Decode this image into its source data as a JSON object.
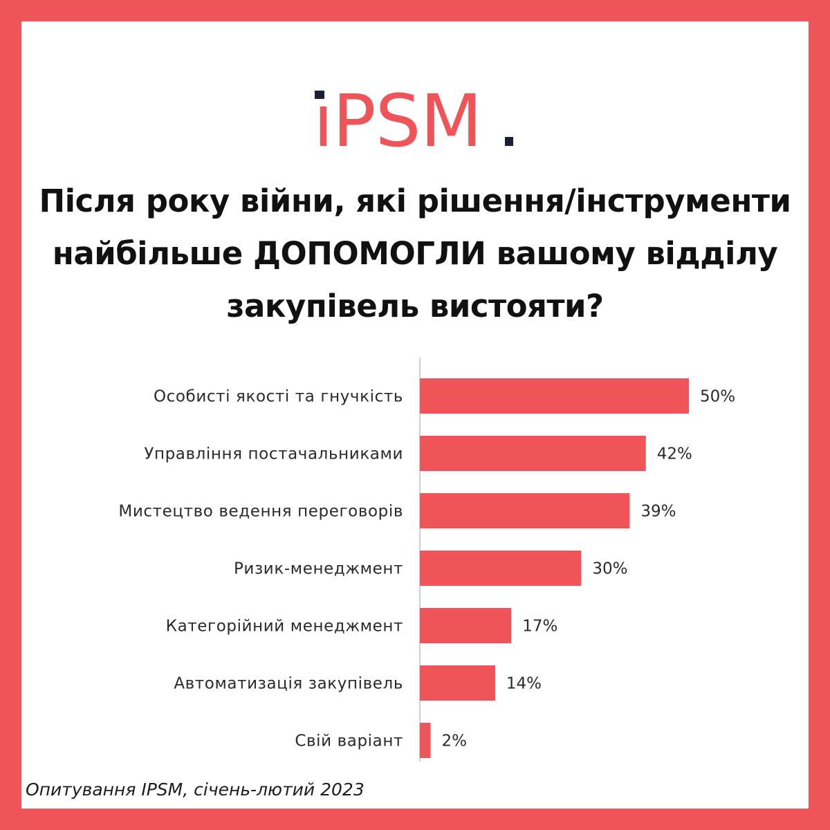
{
  "brand": {
    "logo_text": "iPSM",
    "accent_color": "#ef5459",
    "dark_color": "#1c1f33"
  },
  "title_lines": [
    "Після року війни, які рішення/інструменти",
    "найбільше ДОПОМОГЛИ вашому відділу",
    "закупівель вистояти?"
  ],
  "chart_data": {
    "type": "bar",
    "orientation": "horizontal",
    "categories": [
      "Особисті якості та гнучкість",
      "Управління постачальниками",
      "Мистецтво ведення переговорів",
      "Ризик-менеджмент",
      "Категорійний менеджмент",
      "Автоматизація закупівель",
      "Свій варіант"
    ],
    "values": [
      50,
      42,
      39,
      30,
      17,
      14,
      2
    ],
    "value_labels": [
      "50%",
      "42%",
      "39%",
      "30%",
      "17%",
      "14%",
      "2%"
    ],
    "unit": "%",
    "xlim": [
      0,
      50
    ],
    "bar_color": "#ef5459",
    "grid": false,
    "legend": "none"
  },
  "footnote": "Опитування IPSM, січень-лютий 2023"
}
